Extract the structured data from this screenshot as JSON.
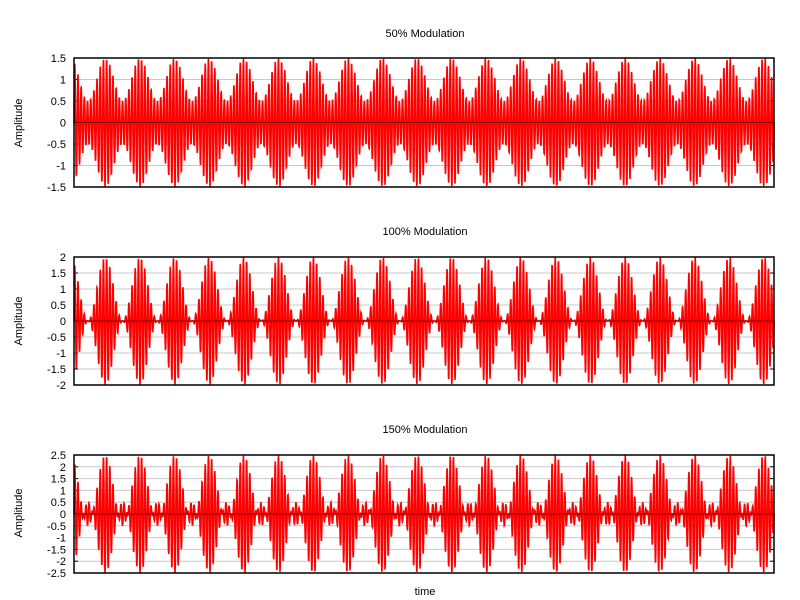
{
  "chart_data": [
    {
      "type": "line",
      "title": "50% Modulation",
      "ylabel": "Amplitude",
      "xlabel": "",
      "ylim": [
        -1.5,
        1.5
      ],
      "yticks": [
        "-1.5",
        "-1",
        "-0.5",
        "0",
        "0.5",
        "1",
        "1.5"
      ],
      "ytick_values": [
        -1.5,
        -1,
        -0.5,
        0,
        0.5,
        1,
        1.5
      ],
      "grid": true,
      "modulation_index": 0.5,
      "carrier_cycles": 220,
      "envelope_cycles": 20.2,
      "series": [
        {
          "color": "#ff0000",
          "fill": "#ff6666"
        }
      ]
    },
    {
      "type": "line",
      "title": "100% Modulation",
      "ylabel": "Amplitude",
      "xlabel": "",
      "ylim": [
        -2,
        2
      ],
      "yticks": [
        "-2",
        "-1.5",
        "-1",
        "-0.5",
        "0",
        "0.5",
        "1",
        "1.5",
        "2"
      ],
      "ytick_values": [
        -2,
        -1.5,
        -1,
        -0.5,
        0,
        0.5,
        1,
        1.5,
        2
      ],
      "grid": true,
      "modulation_index": 1.0,
      "carrier_cycles": 220,
      "envelope_cycles": 20.2,
      "series": [
        {
          "color": "#ff0000",
          "fill": "#ff6666"
        }
      ]
    },
    {
      "type": "line",
      "title": "150% Modulation",
      "ylabel": "Amplitude",
      "xlabel": "time",
      "ylim": [
        -2.5,
        2.5
      ],
      "yticks": [
        "-2.5",
        "-2",
        "-1.5",
        "-1",
        "-0.5",
        "0",
        "0.5",
        "1",
        "1.5",
        "2",
        "2.5"
      ],
      "ytick_values": [
        -2.5,
        -2,
        -1.5,
        -1,
        -0.5,
        0,
        0.5,
        1,
        1.5,
        2,
        2.5
      ],
      "grid": true,
      "modulation_index": 1.5,
      "carrier_cycles": 220,
      "envelope_cycles": 20.2,
      "series": [
        {
          "color": "#ff0000",
          "fill": "#ff6666"
        }
      ]
    }
  ]
}
